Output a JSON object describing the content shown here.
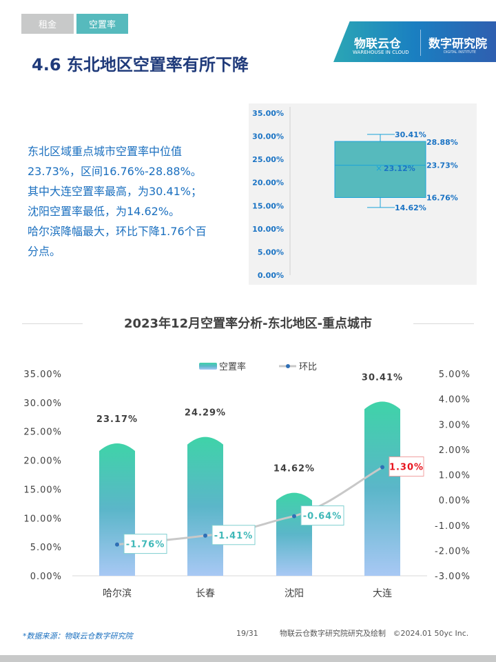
{
  "tabs": [
    {
      "label": "租金"
    },
    {
      "label": "空置率"
    }
  ],
  "title": "4.6 东北地区空置率有所下降",
  "logo": {
    "brand_cn": "物联云仓",
    "brand_en": "WAREHOUSE IN CLOUD",
    "institute_cn": "数字研究院",
    "institute_en": "DIGITAL INSTITUTE"
  },
  "description": [
    "东北区域重点城市空置率中位值",
    "23.73%，区间16.76%-28.88%。",
    "其中大连空置率最高，为30.41%；",
    "沈阳空置率最低，为14.62%。",
    "哈尔滨降幅最大，环比下降1.76个百",
    "分点。"
  ],
  "chart_data": [
    {
      "type": "box",
      "yticks": [
        "0.00%",
        "5.00%",
        "10.00%",
        "15.00%",
        "20.00%",
        "25.00%",
        "30.00%",
        "35.00%"
      ],
      "ylim": [
        0,
        35
      ],
      "max": 30.41,
      "q3": 28.88,
      "median": 23.73,
      "mean": 23.12,
      "q1": 16.76,
      "min": 14.62,
      "labels": {
        "max": "30.41%",
        "q3": "28.88%",
        "median": "23.73%",
        "mean": "23.12%",
        "q1": "16.76%",
        "min": "14.62%"
      },
      "color": "#56babd"
    },
    {
      "type": "bar+line",
      "title": "2023年12月空置率分析-东北地区-重点城市",
      "categories": [
        "哈尔滨",
        "长春",
        "沈阳",
        "大连"
      ],
      "series": [
        {
          "name": "空置率",
          "type": "bar",
          "values": [
            23.17,
            24.29,
            14.62,
            30.41
          ],
          "labels": [
            "23.17%",
            "24.29%",
            "14.62%",
            "30.41%"
          ]
        },
        {
          "name": "环比",
          "type": "line",
          "axis": "right",
          "values": [
            -1.76,
            -1.41,
            -0.64,
            1.3
          ],
          "labels": [
            "-1.76%",
            "-1.41%",
            "-0.64%",
            "1.30%"
          ]
        }
      ],
      "ylim": [
        0,
        35
      ],
      "y2lim": [
        -3,
        5
      ],
      "yticks": [
        "0.00%",
        "5.00%",
        "10.00%",
        "15.00%",
        "20.00%",
        "25.00%",
        "30.00%",
        "35.00%"
      ],
      "y2ticks": [
        "-3.00%",
        "-2.00%",
        "-1.00%",
        "0.00%",
        "1.00%",
        "2.00%",
        "3.00%",
        "4.00%",
        "5.00%"
      ],
      "legend": "top"
    }
  ],
  "footer": {
    "source": "*数据来源：物联云仓数字研究院",
    "page": "19/31",
    "credit": "物联云仓数字研究院研究及绘制   ©2024.01 50yc Inc."
  }
}
